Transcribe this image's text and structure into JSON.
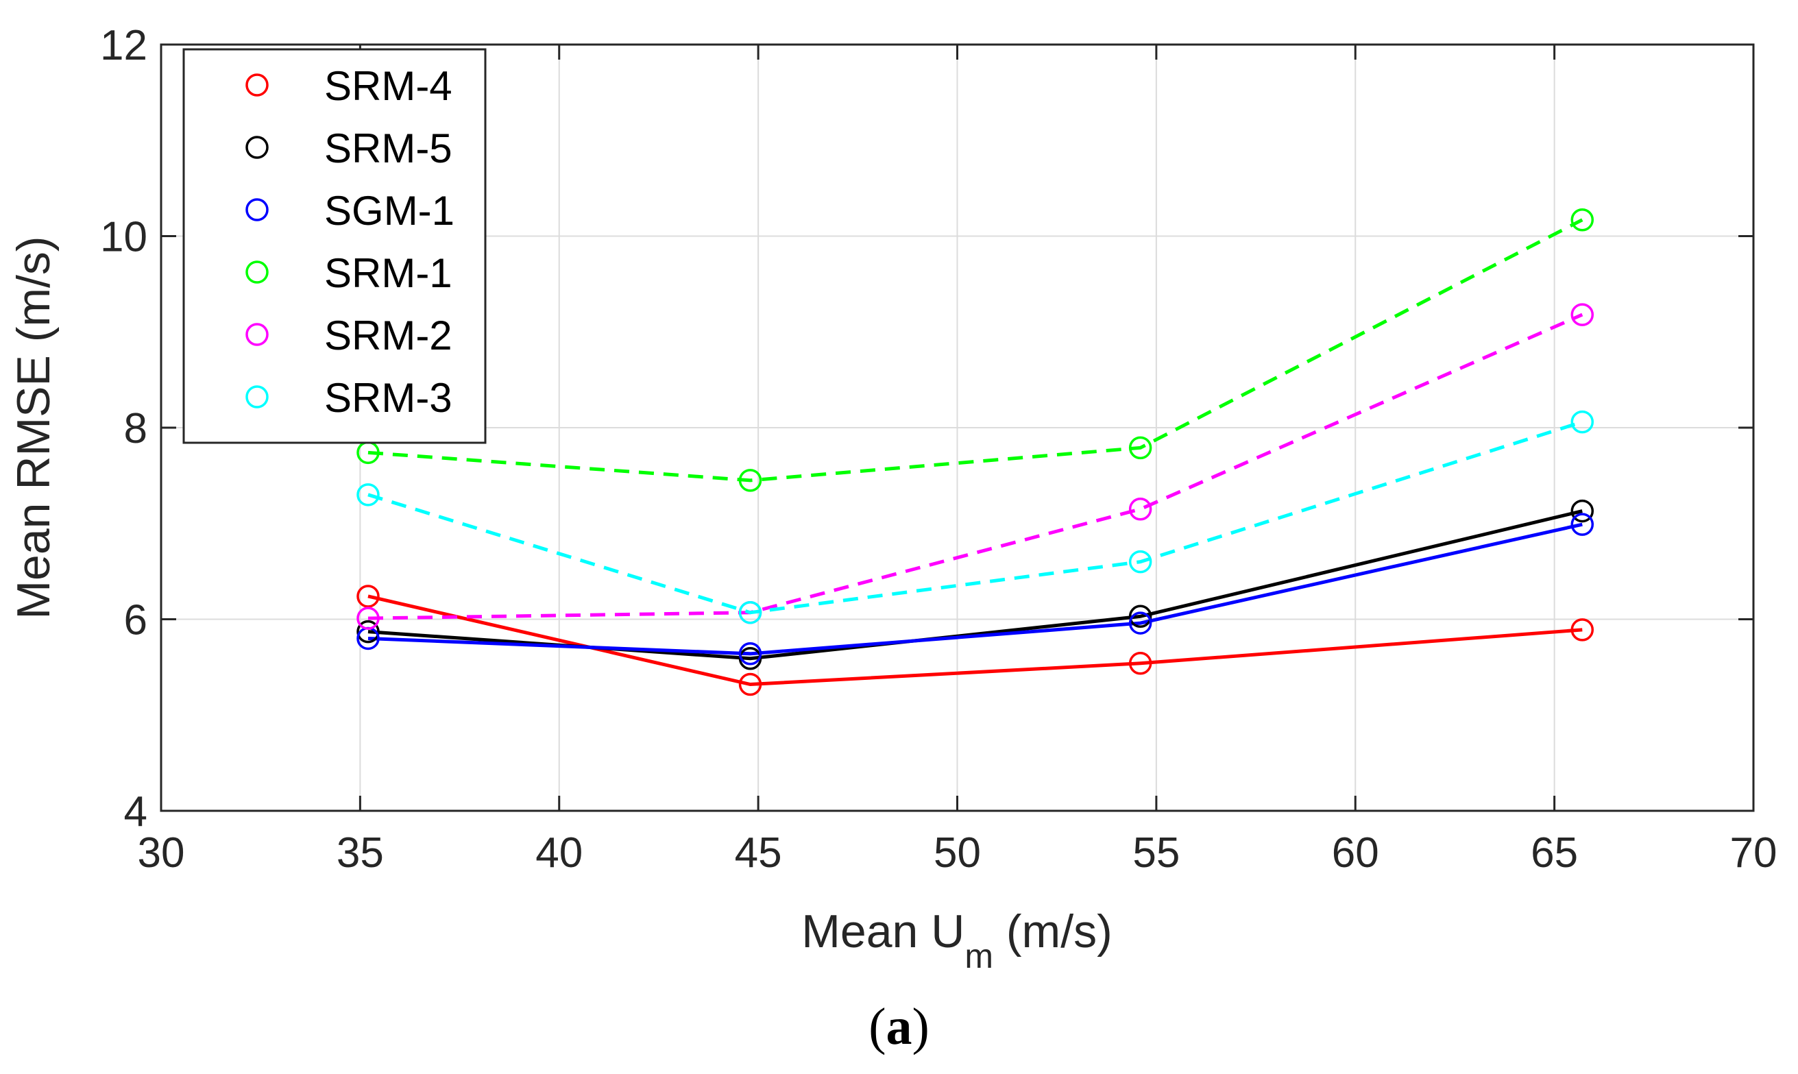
{
  "chart_data": {
    "type": "line",
    "title": "",
    "xlabel_main": "Mean U",
    "xlabel_sub": "m",
    "xlabel_unit": " (m/s)",
    "ylabel": "Mean RMSE (m/s)",
    "xlim": [
      30,
      70
    ],
    "ylim": [
      4,
      12
    ],
    "xticks": [
      30,
      35,
      40,
      45,
      50,
      55,
      60,
      65,
      70
    ],
    "yticks": [
      4,
      6,
      8,
      10,
      12
    ],
    "grid": true,
    "legend_position": "top-left",
    "x": [
      35.2,
      44.8,
      54.6,
      65.7
    ],
    "series": [
      {
        "name": "SRM-4",
        "color": "#ff0000",
        "dash": false,
        "values": [
          6.24,
          5.32,
          5.54,
          5.89
        ]
      },
      {
        "name": "SRM-5",
        "color": "#000000",
        "dash": false,
        "values": [
          5.87,
          5.59,
          6.03,
          7.13
        ]
      },
      {
        "name": "SGM-1",
        "color": "#0000ff",
        "dash": false,
        "values": [
          5.8,
          5.64,
          5.96,
          6.99
        ]
      },
      {
        "name": "SRM-1",
        "color": "#00ff00",
        "dash": true,
        "values": [
          7.74,
          7.45,
          7.79,
          10.17
        ]
      },
      {
        "name": "SRM-2",
        "color": "#ff00ff",
        "dash": true,
        "values": [
          6.01,
          6.07,
          7.15,
          9.18
        ]
      },
      {
        "name": "SRM-3",
        "color": "#00ffff",
        "dash": true,
        "values": [
          7.3,
          6.07,
          6.6,
          8.06
        ]
      }
    ]
  },
  "caption": {
    "open": "(",
    "letter": "a",
    "close": ")"
  }
}
